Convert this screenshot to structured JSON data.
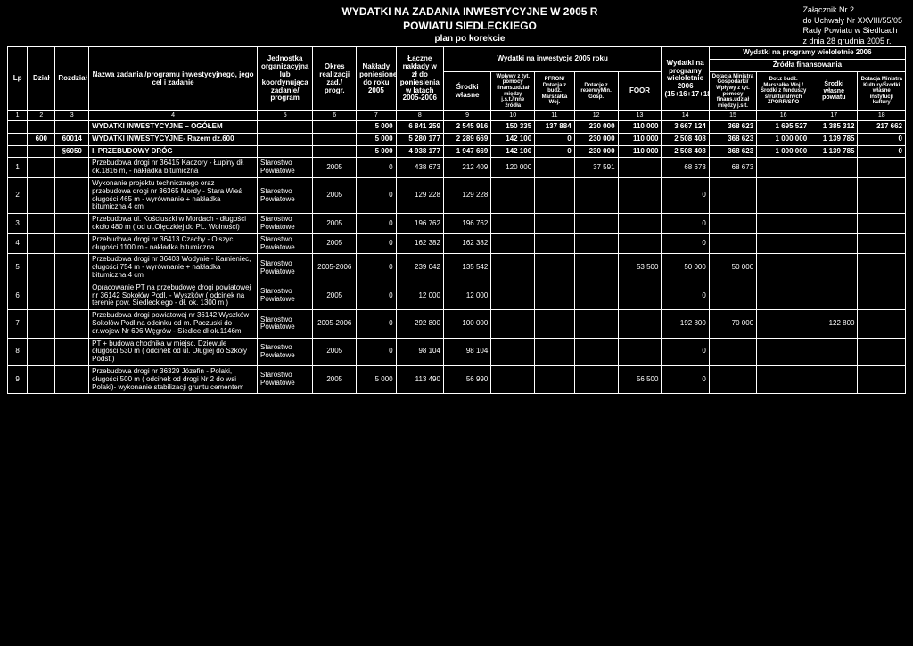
{
  "attachment": {
    "l1": "Załącznik Nr 2",
    "l2": "do Uchwały Nr XXVIII/55/05",
    "l3": "Rady Powiatu w Siedlcach",
    "l4": "z dnia 28 grudnia 2005 r."
  },
  "title": {
    "l1": "WYDATKI NA ZADANIA INWESTYCYJNE W 2005 R",
    "l2": "POWIATU SIEDLECKIEGO",
    "l3": "plan po korekcie"
  },
  "headers": {
    "lp": "Lp",
    "dzial": "Dział",
    "rozdzial": "Rozdział",
    "nazwa": "Nazwa zadania /programu inwestycyjnego, jego cel i zadanie",
    "jednostka": "Jednostka organizacyjna lub koordynująca zadanie/ program",
    "okres": "Okres realizacji zad./ progr.",
    "naklady": "Nakłady poniesione do roku 2005",
    "laczne": "Łączne nakłady w zł do poniesienia w latach 2005-2006",
    "inwest2005": "Wydatki na inwestycje 2005 roku",
    "programy2006": "Wydatki na programy wieloletnie 2006 (15+16+17+18)",
    "programy2006_full": "Wydatki na programy wieloletnie 2006",
    "zrodla": "Źródła finansowania",
    "srodki_wlasne": "Środki własne",
    "wplywy": "Wpływy z tyt. pomocy finans.udział między j.s.t./Inne źródła",
    "pfron": "PFRON/ Dotacja z budż. Marszałka Woj.",
    "dotacje_rez": "Dotacje z rezerwyMin. Gosp.",
    "foor": "FOOR",
    "dotacja_min": "Dotacja Ministra Gospodarki/ Wpływy z tyt. pomocy finans.udział między j.s.t.",
    "dot_budz": "Dot.z budż. Marszałka Woj./Środki z funduszy strukturalnych ZPORR/SPO",
    "srodki_pow": "Środki własne powiatu",
    "dotacja_kult": "Dotacja Ministra Kultury/Środki własne instytucji kultury"
  },
  "colnums": [
    "1",
    "2",
    "3",
    "4",
    "5",
    "6",
    "7",
    "8",
    "9",
    "10",
    "11",
    "12",
    "13",
    "14",
    "15",
    "16",
    "17",
    "18"
  ],
  "rows": [
    {
      "lp": "",
      "dzial": "",
      "rozdz": "",
      "nazwa": "WYDATKI INWESTYCYJNE – OGÓŁEM",
      "jedn": "",
      "okres": "",
      "c7": "5 000",
      "c8": "6 841 259",
      "c9": "2 545 916",
      "c10": "150 335",
      "c11": "137 884",
      "c12": "230 000",
      "c13": "110 000",
      "c14": "3 667 124",
      "c15": "368 623",
      "c16": "1 695 527",
      "c17": "1 385 312",
      "c18": "217 662",
      "bold": true
    },
    {
      "lp": "",
      "dzial": "600",
      "rozdz": "60014",
      "nazwa": "WYDATKI INWESTYCYJNE- Razem dz.600",
      "jedn": "",
      "okres": "",
      "c7": "5 000",
      "c8": "5 280 177",
      "c9": "2 289 669",
      "c10": "142 100",
      "c11": "0",
      "c12": "230 000",
      "c13": "110 000",
      "c14": "2 508 408",
      "c15": "368 623",
      "c16": "1 000 000",
      "c17": "1 139 785",
      "c18": "0",
      "bold": true
    },
    {
      "lp": "",
      "dzial": "",
      "rozdz": "§6050",
      "nazwa": "I. PRZEBUDOWY DRÓG",
      "jedn": "",
      "okres": "",
      "c7": "5 000",
      "c8": "4 938 177",
      "c9": "1 947 669",
      "c10": "142 100",
      "c11": "0",
      "c12": "230 000",
      "c13": "110 000",
      "c14": "2 508 408",
      "c15": "368 623",
      "c16": "1 000 000",
      "c17": "1 139 785",
      "c18": "0",
      "bold": true
    },
    {
      "lp": "1",
      "dzial": "",
      "rozdz": "",
      "nazwa": "Przebudowa drogi nr 36415 Kaczory - Łupiny dł. ok.1816 m, - nakładka bitumiczna",
      "jedn": "Starostwo Powiatowe",
      "okres": "2005",
      "c7": "0",
      "c8": "438 673",
      "c9": "212 409",
      "c10": "120 000",
      "c11": "",
      "c12": "37 591",
      "c13": "",
      "c14": "68 673",
      "c15": "68 673",
      "c16": "",
      "c17": "",
      "c18": ""
    },
    {
      "lp": "2",
      "dzial": "",
      "rozdz": "",
      "nazwa": "Wykonanie projektu technicznego oraz przebudowa drogi nr 36365 Mordy - Stara Wieś, długości 465 m - wyrównanie + nakładka bitumiczna 4 cm",
      "jedn": "Starostwo Powiatowe",
      "okres": "2005",
      "c7": "0",
      "c8": "129 228",
      "c9": "129 228",
      "c10": "",
      "c11": "",
      "c12": "",
      "c13": "",
      "c14": "0",
      "c15": "",
      "c16": "",
      "c17": "",
      "c18": ""
    },
    {
      "lp": "3",
      "dzial": "",
      "rozdz": "",
      "nazwa": "Przebudowa ul. Kościuszki w Mordach - długości około 480 m ( od ul.Olędzkiej do PL. Wolności)",
      "jedn": "Starostwo Powiatowe",
      "okres": "2005",
      "c7": "0",
      "c8": "196 762",
      "c9": "196 762",
      "c10": "",
      "c11": "",
      "c12": "",
      "c13": "",
      "c14": "0",
      "c15": "",
      "c16": "",
      "c17": "",
      "c18": ""
    },
    {
      "lp": "4",
      "dzial": "",
      "rozdz": "",
      "nazwa": "Przebudowa drogi nr 36413 Czachy - Olszyc, długości 1100 m - nakładka bitumiczna",
      "jedn": "Starostwo Powiatowe",
      "okres": "2005",
      "c7": "0",
      "c8": "162 382",
      "c9": "162 382",
      "c10": "",
      "c11": "",
      "c12": "",
      "c13": "",
      "c14": "0",
      "c15": "",
      "c16": "",
      "c17": "",
      "c18": ""
    },
    {
      "lp": "5",
      "dzial": "",
      "rozdz": "",
      "nazwa": "Przebudowa drogi nr 36403 Wodynie - Kamieniec, długości 754 m - wyrównanie + nakładka bitumiczna 4 cm",
      "jedn": "Starostwo Powiatowe",
      "okres": "2005-2006",
      "c7": "0",
      "c8": "239 042",
      "c9": "135 542",
      "c10": "",
      "c11": "",
      "c12": "",
      "c13": "53 500",
      "c14": "50 000",
      "c15": "50 000",
      "c16": "",
      "c17": "",
      "c18": ""
    },
    {
      "lp": "6",
      "dzial": "",
      "rozdz": "",
      "nazwa": "Opracowanie PT na przebudowę drogi powiatowej nr 36142 Sokołów Podl. - Wyszków ( odcinek na terenie pow. Siedleckiego - dł. ok. 1300 m )",
      "jedn": "Starostwo Powiatowe",
      "okres": "2005",
      "c7": "0",
      "c8": "12 000",
      "c9": "12 000",
      "c10": "",
      "c11": "",
      "c12": "",
      "c13": "",
      "c14": "0",
      "c15": "",
      "c16": "",
      "c17": "",
      "c18": ""
    },
    {
      "lp": "7",
      "dzial": "",
      "rozdz": "",
      "nazwa": "Przebudowa drogi powiatowej nr 36142 Wyszków Sokołów Podl.na odcinku od m. Paczuski do dr.wojew Nr 696 Węgrów - Siedlce dł ok.1146m",
      "jedn": "Starostwo Powiatowe",
      "okres": "2005-2006",
      "c7": "0",
      "c8": "292 800",
      "c9": "100 000",
      "c10": "",
      "c11": "",
      "c12": "",
      "c13": "",
      "c14": "192 800",
      "c15": "70 000",
      "c16": "",
      "c17": "122 800",
      "c18": ""
    },
    {
      "lp": "8",
      "dzial": "",
      "rozdz": "",
      "nazwa": "PT + budowa chodnika w miejsc. Dziewule długości 530 m ( odcinek od ul. Długiej do Szkoły Podst.)",
      "jedn": "Starostwo Powiatowe",
      "okres": "2005",
      "c7": "0",
      "c8": "98 104",
      "c9": "98 104",
      "c10": "",
      "c11": "",
      "c12": "",
      "c13": "",
      "c14": "0",
      "c15": "",
      "c16": "",
      "c17": "",
      "c18": ""
    },
    {
      "lp": "9",
      "dzial": "",
      "rozdz": "",
      "nazwa": "Przebudowa drogi nr 36329 Józefin - Polaki, długości 500 m ( odcinek od drogi Nr 2 do wsi Polaki)- wykonanie stabilizacji gruntu cementem",
      "jedn": "Starostwo Powiatowe",
      "okres": "2005",
      "c7": "5 000",
      "c8": "113 490",
      "c9": "56 990",
      "c10": "",
      "c11": "",
      "c12": "",
      "c13": "56 500",
      "c14": "0",
      "c15": "",
      "c16": "",
      "c17": "",
      "c18": ""
    }
  ],
  "colwidths": [
    "20",
    "28",
    "34",
    "170",
    "56",
    "44",
    "40",
    "48",
    "48",
    "44",
    "40",
    "44",
    "44",
    "48",
    "48",
    "54",
    "48",
    "48"
  ]
}
